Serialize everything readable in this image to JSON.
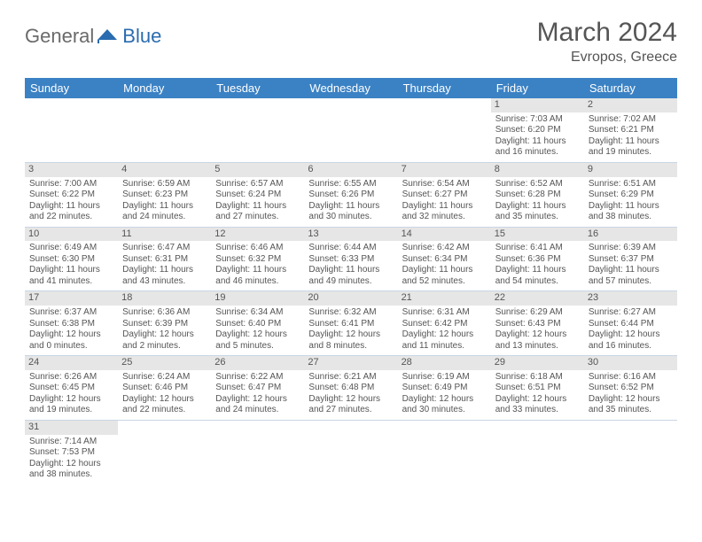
{
  "logo": {
    "text1": "General",
    "text2": "Blue"
  },
  "title": "March 2024",
  "location": "Evropos, Greece",
  "colors": {
    "header_bg": "#3b82c4",
    "header_text": "#ffffff",
    "daynum_bg": "#e6e6e6",
    "border": "#c9d6e4",
    "text": "#555555",
    "logo_gray": "#6a6a6a",
    "logo_blue": "#2a6cb0"
  },
  "dayHeaders": [
    "Sunday",
    "Monday",
    "Tuesday",
    "Wednesday",
    "Thursday",
    "Friday",
    "Saturday"
  ],
  "weeks": [
    [
      null,
      null,
      null,
      null,
      null,
      {
        "n": "1",
        "sr": "Sunrise: 7:03 AM",
        "ss": "Sunset: 6:20 PM",
        "d1": "Daylight: 11 hours",
        "d2": "and 16 minutes."
      },
      {
        "n": "2",
        "sr": "Sunrise: 7:02 AM",
        "ss": "Sunset: 6:21 PM",
        "d1": "Daylight: 11 hours",
        "d2": "and 19 minutes."
      }
    ],
    [
      {
        "n": "3",
        "sr": "Sunrise: 7:00 AM",
        "ss": "Sunset: 6:22 PM",
        "d1": "Daylight: 11 hours",
        "d2": "and 22 minutes."
      },
      {
        "n": "4",
        "sr": "Sunrise: 6:59 AM",
        "ss": "Sunset: 6:23 PM",
        "d1": "Daylight: 11 hours",
        "d2": "and 24 minutes."
      },
      {
        "n": "5",
        "sr": "Sunrise: 6:57 AM",
        "ss": "Sunset: 6:24 PM",
        "d1": "Daylight: 11 hours",
        "d2": "and 27 minutes."
      },
      {
        "n": "6",
        "sr": "Sunrise: 6:55 AM",
        "ss": "Sunset: 6:26 PM",
        "d1": "Daylight: 11 hours",
        "d2": "and 30 minutes."
      },
      {
        "n": "7",
        "sr": "Sunrise: 6:54 AM",
        "ss": "Sunset: 6:27 PM",
        "d1": "Daylight: 11 hours",
        "d2": "and 32 minutes."
      },
      {
        "n": "8",
        "sr": "Sunrise: 6:52 AM",
        "ss": "Sunset: 6:28 PM",
        "d1": "Daylight: 11 hours",
        "d2": "and 35 minutes."
      },
      {
        "n": "9",
        "sr": "Sunrise: 6:51 AM",
        "ss": "Sunset: 6:29 PM",
        "d1": "Daylight: 11 hours",
        "d2": "and 38 minutes."
      }
    ],
    [
      {
        "n": "10",
        "sr": "Sunrise: 6:49 AM",
        "ss": "Sunset: 6:30 PM",
        "d1": "Daylight: 11 hours",
        "d2": "and 41 minutes."
      },
      {
        "n": "11",
        "sr": "Sunrise: 6:47 AM",
        "ss": "Sunset: 6:31 PM",
        "d1": "Daylight: 11 hours",
        "d2": "and 43 minutes."
      },
      {
        "n": "12",
        "sr": "Sunrise: 6:46 AM",
        "ss": "Sunset: 6:32 PM",
        "d1": "Daylight: 11 hours",
        "d2": "and 46 minutes."
      },
      {
        "n": "13",
        "sr": "Sunrise: 6:44 AM",
        "ss": "Sunset: 6:33 PM",
        "d1": "Daylight: 11 hours",
        "d2": "and 49 minutes."
      },
      {
        "n": "14",
        "sr": "Sunrise: 6:42 AM",
        "ss": "Sunset: 6:34 PM",
        "d1": "Daylight: 11 hours",
        "d2": "and 52 minutes."
      },
      {
        "n": "15",
        "sr": "Sunrise: 6:41 AM",
        "ss": "Sunset: 6:36 PM",
        "d1": "Daylight: 11 hours",
        "d2": "and 54 minutes."
      },
      {
        "n": "16",
        "sr": "Sunrise: 6:39 AM",
        "ss": "Sunset: 6:37 PM",
        "d1": "Daylight: 11 hours",
        "d2": "and 57 minutes."
      }
    ],
    [
      {
        "n": "17",
        "sr": "Sunrise: 6:37 AM",
        "ss": "Sunset: 6:38 PM",
        "d1": "Daylight: 12 hours",
        "d2": "and 0 minutes."
      },
      {
        "n": "18",
        "sr": "Sunrise: 6:36 AM",
        "ss": "Sunset: 6:39 PM",
        "d1": "Daylight: 12 hours",
        "d2": "and 2 minutes."
      },
      {
        "n": "19",
        "sr": "Sunrise: 6:34 AM",
        "ss": "Sunset: 6:40 PM",
        "d1": "Daylight: 12 hours",
        "d2": "and 5 minutes."
      },
      {
        "n": "20",
        "sr": "Sunrise: 6:32 AM",
        "ss": "Sunset: 6:41 PM",
        "d1": "Daylight: 12 hours",
        "d2": "and 8 minutes."
      },
      {
        "n": "21",
        "sr": "Sunrise: 6:31 AM",
        "ss": "Sunset: 6:42 PM",
        "d1": "Daylight: 12 hours",
        "d2": "and 11 minutes."
      },
      {
        "n": "22",
        "sr": "Sunrise: 6:29 AM",
        "ss": "Sunset: 6:43 PM",
        "d1": "Daylight: 12 hours",
        "d2": "and 13 minutes."
      },
      {
        "n": "23",
        "sr": "Sunrise: 6:27 AM",
        "ss": "Sunset: 6:44 PM",
        "d1": "Daylight: 12 hours",
        "d2": "and 16 minutes."
      }
    ],
    [
      {
        "n": "24",
        "sr": "Sunrise: 6:26 AM",
        "ss": "Sunset: 6:45 PM",
        "d1": "Daylight: 12 hours",
        "d2": "and 19 minutes."
      },
      {
        "n": "25",
        "sr": "Sunrise: 6:24 AM",
        "ss": "Sunset: 6:46 PM",
        "d1": "Daylight: 12 hours",
        "d2": "and 22 minutes."
      },
      {
        "n": "26",
        "sr": "Sunrise: 6:22 AM",
        "ss": "Sunset: 6:47 PM",
        "d1": "Daylight: 12 hours",
        "d2": "and 24 minutes."
      },
      {
        "n": "27",
        "sr": "Sunrise: 6:21 AM",
        "ss": "Sunset: 6:48 PM",
        "d1": "Daylight: 12 hours",
        "d2": "and 27 minutes."
      },
      {
        "n": "28",
        "sr": "Sunrise: 6:19 AM",
        "ss": "Sunset: 6:49 PM",
        "d1": "Daylight: 12 hours",
        "d2": "and 30 minutes."
      },
      {
        "n": "29",
        "sr": "Sunrise: 6:18 AM",
        "ss": "Sunset: 6:51 PM",
        "d1": "Daylight: 12 hours",
        "d2": "and 33 minutes."
      },
      {
        "n": "30",
        "sr": "Sunrise: 6:16 AM",
        "ss": "Sunset: 6:52 PM",
        "d1": "Daylight: 12 hours",
        "d2": "and 35 minutes."
      }
    ],
    [
      {
        "n": "31",
        "sr": "Sunrise: 7:14 AM",
        "ss": "Sunset: 7:53 PM",
        "d1": "Daylight: 12 hours",
        "d2": "and 38 minutes."
      },
      null,
      null,
      null,
      null,
      null,
      null
    ]
  ]
}
